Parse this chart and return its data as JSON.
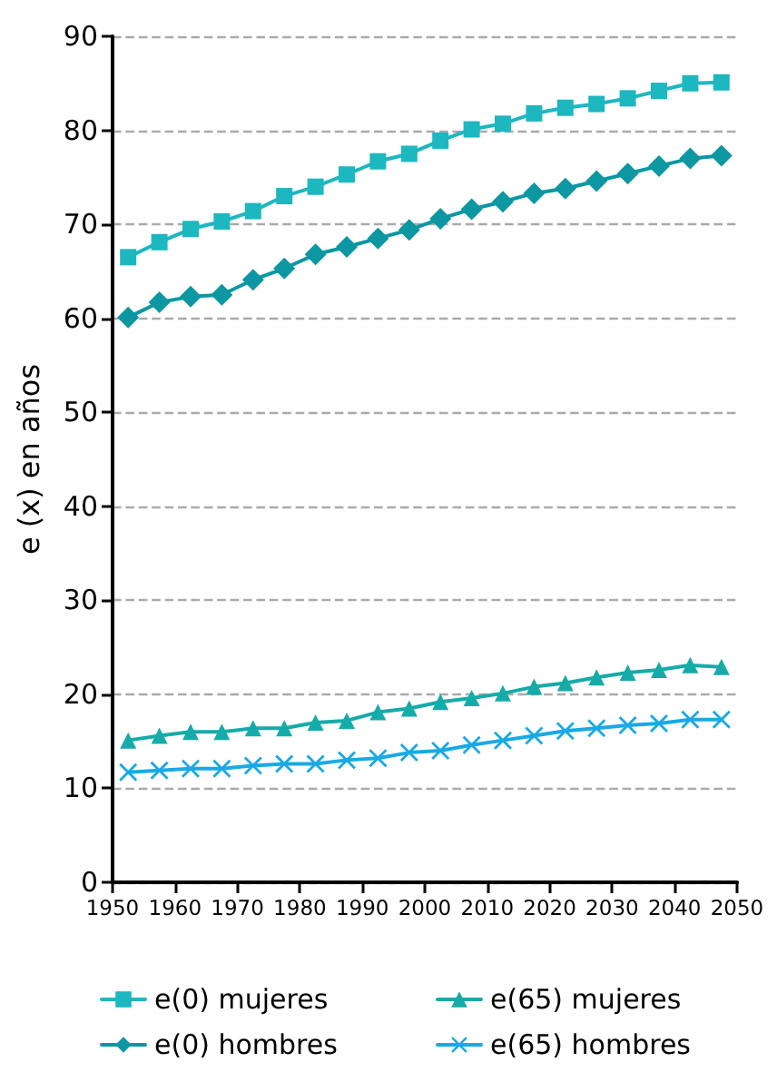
{
  "chart_data": {
    "type": "line",
    "ylabel": "e (x) en años",
    "x": [
      1952.5,
      1957.5,
      1962.5,
      1967.5,
      1972.5,
      1977.5,
      1982.5,
      1987.5,
      1992.5,
      1997.5,
      2002.5,
      2007.5,
      2012.5,
      2017.5,
      2022.5,
      2027.5,
      2032.5,
      2037.5,
      2042.5,
      2047.5
    ],
    "xlim": [
      1950,
      2050
    ],
    "xticks": [
      1950,
      1960,
      1970,
      1980,
      1990,
      2000,
      2010,
      2020,
      2030,
      2040,
      2050
    ],
    "ylim": [
      0,
      90
    ],
    "yticks": [
      0,
      10,
      20,
      30,
      40,
      50,
      60,
      70,
      80,
      90
    ],
    "grid": "y",
    "legend": "bottom",
    "line_style": "solid",
    "series": [
      {
        "name": "e(0) mujeres",
        "color": "#1db7c0",
        "marker": "square",
        "values": [
          66.5,
          68.1,
          69.5,
          70.3,
          71.4,
          73.0,
          74.0,
          75.3,
          76.7,
          77.5,
          78.9,
          80.1,
          80.7,
          81.8,
          82.4,
          82.8,
          83.4,
          84.2,
          85.0,
          85.1
        ]
      },
      {
        "name": "e(0) hombres",
        "color": "#0c97a2",
        "marker": "diamond",
        "values": [
          60.1,
          61.7,
          62.3,
          62.5,
          64.1,
          65.3,
          66.8,
          67.6,
          68.5,
          69.4,
          70.6,
          71.6,
          72.4,
          73.3,
          73.8,
          74.6,
          75.4,
          76.2,
          77.0,
          77.3
        ]
      },
      {
        "name": "e(65) mujeres",
        "color": "#15aba8",
        "marker": "triangle",
        "values": [
          15.1,
          15.6,
          16.0,
          16.0,
          16.4,
          16.4,
          17.0,
          17.2,
          18.1,
          18.5,
          19.2,
          19.6,
          20.1,
          20.8,
          21.2,
          21.8,
          22.3,
          22.6,
          23.1,
          22.9
        ]
      },
      {
        "name": "e(65) hombres",
        "color": "#19a9e6",
        "marker": "cross",
        "values": [
          11.7,
          11.9,
          12.1,
          12.1,
          12.4,
          12.6,
          12.6,
          13.0,
          13.2,
          13.8,
          14.0,
          14.6,
          15.1,
          15.6,
          16.1,
          16.4,
          16.7,
          16.9,
          17.3,
          17.3
        ]
      }
    ]
  }
}
